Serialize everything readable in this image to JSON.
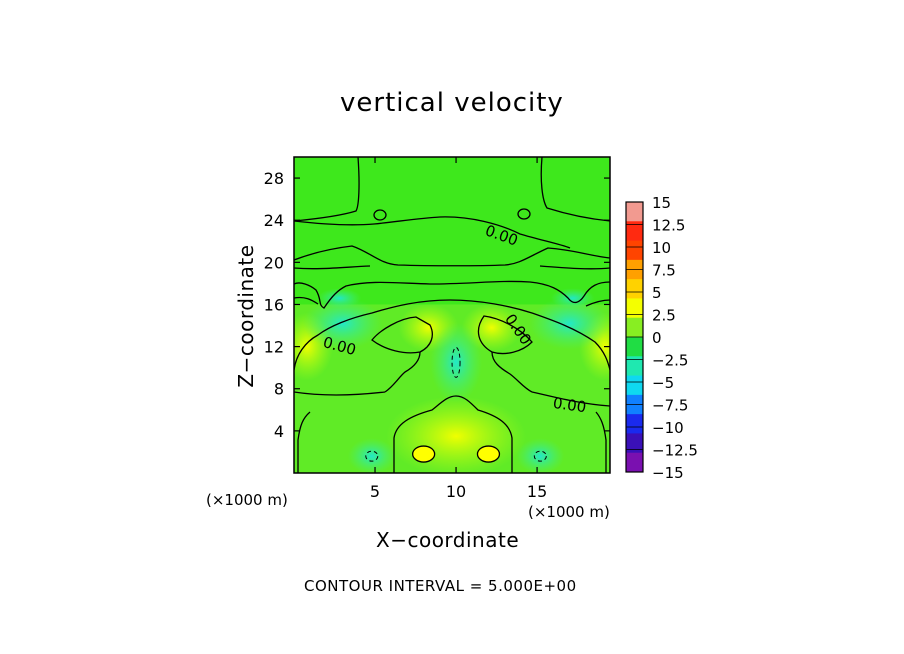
{
  "chart_data": {
    "type": "heatmap",
    "title": "vertical velocity",
    "xlabel": "X−coordinate",
    "ylabel": "Z−coordinate",
    "x_unit_label": "(×1000 m)",
    "z_unit_label": "(×1000 m)",
    "xlim": [
      0,
      19.5
    ],
    "ylim": [
      0,
      30
    ],
    "x_ticks": [
      5,
      10,
      15
    ],
    "x_tick_labels": [
      "5",
      "10",
      "15"
    ],
    "y_ticks": [
      4,
      8,
      12,
      16,
      20,
      24,
      28
    ],
    "y_tick_labels": [
      "4",
      "8",
      "12",
      "16",
      "20",
      "24",
      "28"
    ],
    "colorbar": {
      "levels": [
        15,
        12.5,
        10,
        7.5,
        5,
        2.5,
        0,
        -2.5,
        -5,
        -7.5,
        -10,
        -12.5,
        -15
      ],
      "labels": [
        "15",
        "12.5",
        "10",
        "7.5",
        "5",
        "2.5",
        "0",
        "−2.5",
        "−5",
        "−7.5",
        "−10",
        "−12.5",
        "−15"
      ],
      "colors": [
        "#f29a90",
        "#ff2a10",
        "#ff4400",
        "#ffa000",
        "#ffd200",
        "#f4ff00",
        "#88ee22",
        "#20dd44",
        "#1fe8b0",
        "#0fd8f0",
        "#1080ff",
        "#1a2aee",
        "#3a10b8",
        "#7a10b0"
      ]
    },
    "contour_labels": [
      {
        "text": "0.00",
        "x": 12.8,
        "z": 22.5
      },
      {
        "text": "0.00",
        "x": 13.8,
        "z": 13.6
      },
      {
        "text": "0.00",
        "x": 2.8,
        "z": 12.0
      },
      {
        "text": "0.00",
        "x": 17.0,
        "z": 6.4
      }
    ],
    "features": [
      {
        "kind": "updraft",
        "x": 8.0,
        "z": 1.8,
        "peak": 3.0
      },
      {
        "kind": "updraft",
        "x": 12.0,
        "z": 1.8,
        "peak": 3.0
      },
      {
        "kind": "downdraft",
        "x": 4.8,
        "z": 1.6,
        "peak": -4.0
      },
      {
        "kind": "downdraft",
        "x": 15.2,
        "z": 1.6,
        "peak": -4.0
      },
      {
        "kind": "downdraft",
        "x": 10.0,
        "z": 10.5,
        "peak": -3.5
      }
    ],
    "grid": false
  },
  "footer": {
    "contour_interval": "CONTOUR INTERVAL = 5.000E+00"
  }
}
